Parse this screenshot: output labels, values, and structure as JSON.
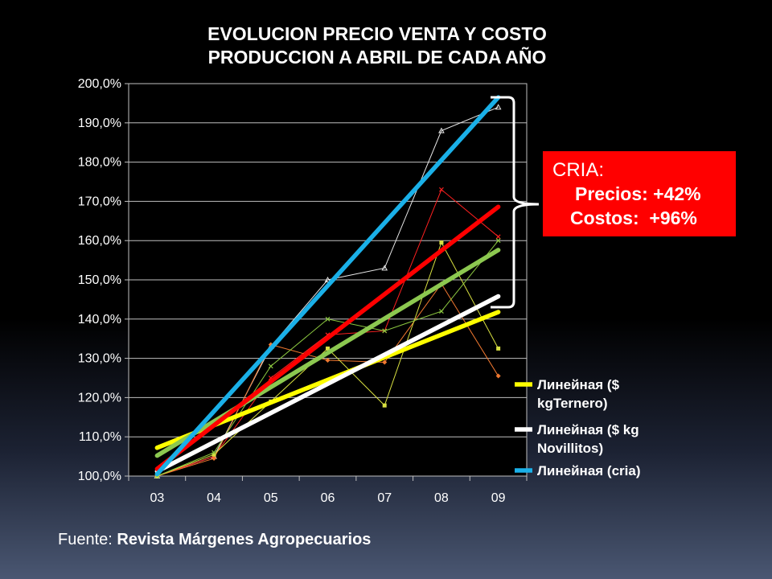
{
  "chart_data": {
    "type": "line",
    "title_lines": [
      "EVOLUCION PRECIO VENTA Y COSTO",
      "PRODUCCION A ABRIL DE CADA AÑO"
    ],
    "categories": [
      "03",
      "04",
      "05",
      "06",
      "07",
      "08",
      "09"
    ],
    "ylim": [
      100,
      200
    ],
    "yticks": [
      "100,0%",
      "110,0%",
      "120,0%",
      "130,0%",
      "140,0%",
      "150,0%",
      "160,0%",
      "170,0%",
      "180,0%",
      "190,0%",
      "200,0%"
    ],
    "grid": true,
    "legend_position": "bottom-right",
    "raw_series": [
      {
        "color": "#e8e8e8",
        "marker": "triangle",
        "values": [
          100,
          105,
          133,
          150,
          153,
          188,
          194
        ]
      },
      {
        "color": "#ff2020",
        "marker": "x",
        "values": [
          100,
          105,
          125,
          136,
          137,
          173,
          161
        ]
      },
      {
        "color": "#f07830",
        "marker": "diamond",
        "values": [
          100,
          104.5,
          133.5,
          129.5,
          129,
          149,
          125.5
        ]
      },
      {
        "color": "#d8e040",
        "marker": "square",
        "values": [
          100,
          105.5,
          119,
          132.5,
          118,
          159.5,
          132.5
        ]
      },
      {
        "color": "#8cc840",
        "marker": "x",
        "values": [
          100,
          106,
          128,
          140,
          137,
          142,
          160
        ]
      }
    ],
    "trend_series": [
      {
        "color": "#ffff00",
        "start": 107.2,
        "end": 141.8
      },
      {
        "color": "#ffffff",
        "start": 101.2,
        "end": 145.8
      },
      {
        "color": "#8cc850",
        "start": 105.2,
        "end": 157.6
      },
      {
        "color": "#ff0000",
        "start": 101.8,
        "end": 168.6
      },
      {
        "color": "#1ab0e8",
        "start": 100.5,
        "end": 196.5
      }
    ],
    "legend": [
      {
        "lines": [
          "Линейная ($",
          "kgTernero)"
        ],
        "color": "#ffff00"
      },
      {
        "lines": [
          "Линейная ($ kg",
          "Novillitos)"
        ],
        "color": "#ffffff"
      },
      {
        "lines": [
          "Линейная (cria)"
        ],
        "color": "#1ab0e8"
      }
    ]
  },
  "callout": {
    "heading": "CRIA:",
    "line1": "Precios: +42%",
    "line2": "Costos:  +96%"
  },
  "source": {
    "prefix": "Fuente: ",
    "name": "Revista Márgenes Agropecuarios"
  }
}
